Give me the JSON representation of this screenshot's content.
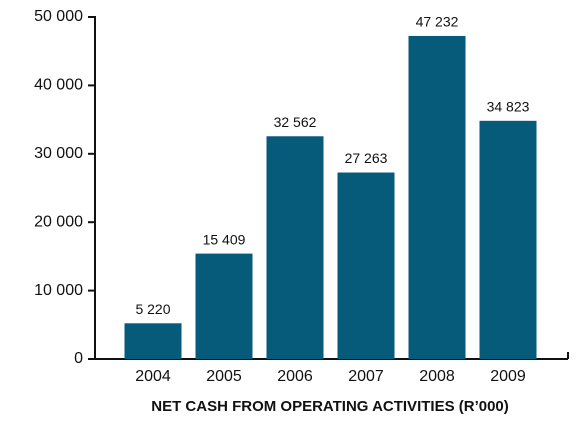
{
  "chart_data": {
    "type": "bar",
    "x_label": "NET CASH FROM OPERATING ACTIVITIES (R’000)",
    "categories": [
      "2004",
      "2005",
      "2006",
      "2007",
      "2008",
      "2009"
    ],
    "values": [
      5220,
      15409,
      32562,
      27263,
      47232,
      34823
    ],
    "value_labels": [
      "5 220",
      "15 409",
      "32 562",
      "27 263",
      "47 232",
      "34 823"
    ],
    "color": "#065a7a",
    "ylim": [
      0,
      50000
    ],
    "yticks": [
      0,
      {
        "value": 10000,
        "label": "10 000"
      },
      {
        "value": 20000,
        "label": "20 000"
      },
      {
        "value": 30000,
        "label": "30 000"
      },
      {
        "value": 40000,
        "label": "40 000"
      },
      {
        "value": 50000,
        "label": "50 000"
      }
    ],
    "grid": false
  }
}
